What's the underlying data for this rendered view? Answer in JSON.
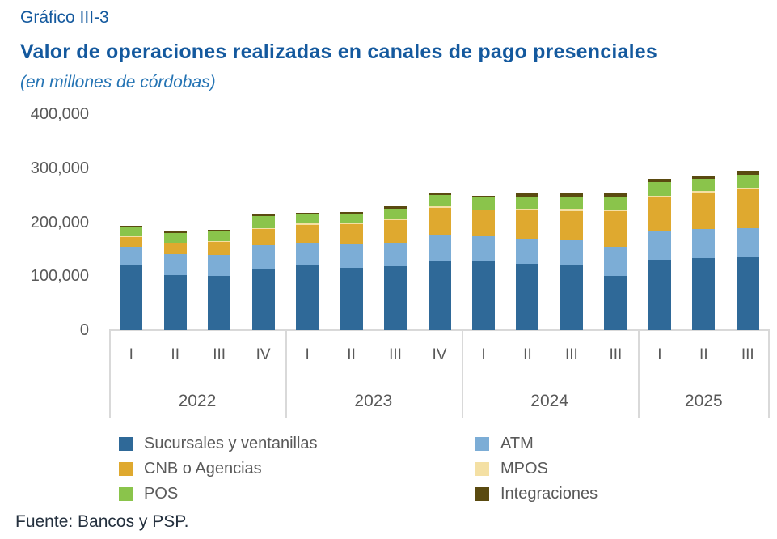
{
  "header": {
    "figure_label": "Gráfico III-3",
    "title": "Valor de operaciones realizadas en canales de pago presenciales",
    "subtitle": "(en millones de córdobas)"
  },
  "source": "Fuente: Bancos y PSP.",
  "colors": {
    "title_blue": "#14599E",
    "subtitle_blue": "#2574B4",
    "axis_text_gray": "#595959",
    "axis_line_gray": "#D9D9D9",
    "sucursales": "#2F6998",
    "atm": "#7CADD6",
    "cnb": "#DFA92F",
    "mpos": "#F4E0A4",
    "pos": "#8AC44B",
    "integraciones": "#5A4A10"
  },
  "chart_data": {
    "type": "bar",
    "stacked": true,
    "title": "Valor de operaciones realizadas en canales de pago presenciales",
    "subtitle": "(en millones de córdobas)",
    "xlabel": "",
    "ylabel": "",
    "ylim": [
      0,
      400000
    ],
    "gridlines": false,
    "legend_position": "bottom",
    "yticks": [
      {
        "label": "400,000",
        "value": 400000
      },
      {
        "label": "300,000",
        "value": 300000
      },
      {
        "label": "200,000",
        "value": 200000
      },
      {
        "label": "100,000",
        "value": 100000
      },
      {
        "label": "0",
        "value": 0
      }
    ],
    "groups": [
      {
        "year": "2022",
        "quarters": [
          "I",
          "II",
          "III",
          "IV"
        ]
      },
      {
        "year": "2023",
        "quarters": [
          "I",
          "II",
          "III",
          "IV"
        ]
      },
      {
        "year": "2024",
        "quarters": [
          "I",
          "II",
          "III",
          "III"
        ]
      },
      {
        "year": "2025",
        "quarters": [
          "I",
          "II",
          "III"
        ]
      }
    ],
    "categories": [
      "2022 I",
      "2022 II",
      "2022 III",
      "2022 IV",
      "2023 I",
      "2023 II",
      "2023 III",
      "2023 IV",
      "2024 I",
      "2024 II",
      "2024 III",
      "2024 III",
      "2025 I",
      "2025 II",
      "2025 III"
    ],
    "series": [
      {
        "name": "Sucursales y ventanillas",
        "color_key": "sucursales",
        "values": [
          119500,
          102500,
          100500,
          113500,
          121500,
          115000,
          118500,
          128500,
          127500,
          122500,
          120000,
          100500,
          130500,
          133500,
          136500
        ]
      },
      {
        "name": "ATM",
        "color_key": "atm",
        "values": [
          35500,
          38500,
          39500,
          44000,
          41000,
          43500,
          43500,
          49000,
          46500,
          47500,
          48000,
          53500,
          54000,
          53500,
          53000
        ]
      },
      {
        "name": "CNB o Agencias",
        "color_key": "cnb",
        "values": [
          18000,
          20500,
          23500,
          30000,
          32500,
          38000,
          42000,
          49500,
          48000,
          53000,
          52500,
          66000,
          63000,
          66000,
          71000
        ]
      },
      {
        "name": "MPOS",
        "color_key": "mpos",
        "values": [
          1000,
          1000,
          2000,
          1500,
          2500,
          1500,
          1500,
          2000,
          1500,
          1500,
          4000,
          2000,
          2000,
          4000,
          2500
        ]
      },
      {
        "name": "POS",
        "color_key": "pos",
        "values": [
          16500,
          17500,
          17000,
          22000,
          16500,
          18000,
          20000,
          21500,
          22000,
          22000,
          23500,
          24500,
          24500,
          22500,
          24500
        ]
      },
      {
        "name": "Integraciones",
        "color_key": "integraciones",
        "values": [
          3000,
          3000,
          3500,
          4000,
          3000,
          3000,
          4000,
          5000,
          4000,
          6000,
          5500,
          6500,
          6000,
          6500,
          7000
        ]
      }
    ],
    "legend_columns": [
      [
        0,
        2,
        4
      ],
      [
        1,
        3,
        5
      ]
    ]
  }
}
